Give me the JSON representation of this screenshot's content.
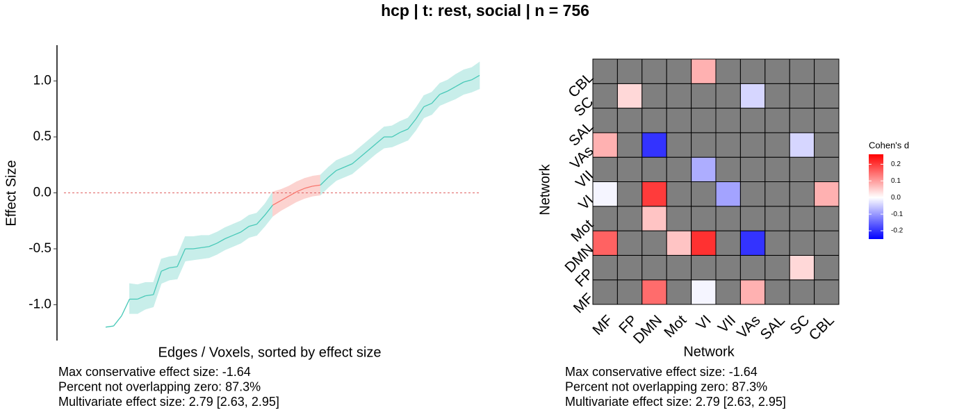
{
  "title": "hcp | t: rest, social | n = 756",
  "chart_data": [
    {
      "type": "line",
      "xlabel": "Edges / Voxels, sorted by effect size",
      "ylabel": "Effect Size",
      "values": [
        -1.2,
        -1.19,
        -1.1,
        -0.95,
        -0.95,
        -0.92,
        -0.91,
        -0.7,
        -0.67,
        -0.66,
        -0.5,
        -0.5,
        -0.49,
        -0.48,
        -0.45,
        -0.41,
        -0.38,
        -0.35,
        -0.3,
        -0.28,
        -0.2,
        -0.11,
        -0.07,
        -0.03,
        0.01,
        0.04,
        0.06,
        0.07,
        0.14,
        0.2,
        0.23,
        0.26,
        0.32,
        0.38,
        0.44,
        0.5,
        0.5,
        0.54,
        0.57,
        0.66,
        0.77,
        0.8,
        0.88,
        0.91,
        0.95,
        0.99,
        1.01,
        1.05
      ],
      "lower": [
        null,
        null,
        null,
        -1.08,
        -1.08,
        -1.04,
        -1.02,
        -0.81,
        -0.78,
        -0.77,
        -0.61,
        -0.6,
        -0.59,
        -0.58,
        -0.55,
        -0.51,
        -0.48,
        -0.45,
        -0.4,
        -0.38,
        -0.3,
        -0.21,
        -0.16,
        -0.12,
        -0.08,
        -0.05,
        -0.03,
        -0.02,
        0.05,
        0.11,
        0.14,
        0.17,
        0.23,
        0.29,
        0.35,
        0.4,
        0.41,
        0.44,
        0.47,
        0.56,
        0.67,
        0.7,
        0.78,
        0.81,
        0.84,
        0.88,
        0.9,
        0.93
      ],
      "upper": [
        null,
        null,
        null,
        -0.81,
        -0.82,
        -0.8,
        -0.8,
        -0.59,
        -0.57,
        -0.56,
        -0.39,
        -0.39,
        -0.38,
        -0.38,
        -0.35,
        -0.31,
        -0.28,
        -0.25,
        -0.2,
        -0.18,
        -0.1,
        0.01,
        0.03,
        0.06,
        0.1,
        0.13,
        0.15,
        0.16,
        0.23,
        0.29,
        0.32,
        0.35,
        0.41,
        0.47,
        0.53,
        0.59,
        0.6,
        0.64,
        0.67,
        0.76,
        0.87,
        0.9,
        0.98,
        1.01,
        1.06,
        1.1,
        1.12,
        1.17
      ],
      "color": "#48c9b8",
      "ribbon_color": "#c8eeea",
      "overlap_color": "#f8766d",
      "overlap_ribbon_color": "#fcd3d0",
      "hline": 0,
      "hline_color": "#e06060",
      "ylim": [
        -1.32,
        1.32
      ],
      "yticks": [
        {
          "value": -1,
          "label": "-1.0"
        },
        {
          "value": -0.5,
          "label": "-0.5"
        },
        {
          "value": 0,
          "label": "0.0"
        },
        {
          "value": 0.5,
          "label": "0.5"
        },
        {
          "value": 1,
          "label": "1.0"
        }
      ],
      "notes": [
        "Max conservative effect size: -1.64",
        "Percent not overlapping zero: 87.3%",
        "Multivariate effect size: 2.79 [2.63, 2.95]"
      ]
    },
    {
      "type": "heatmap",
      "xlabel": "Network",
      "ylabel": "Network",
      "x": [
        "MF",
        "FP",
        "DMN",
        "Mot",
        "VI",
        "VII",
        "VAs",
        "SAL",
        "SC",
        "CBL"
      ],
      "y": [
        "MF",
        "FP",
        "DMN",
        "Mot",
        "VI",
        "VII",
        "VAs",
        "SAL",
        "SC",
        "CBL"
      ],
      "values": [
        [
          null,
          null,
          0.15,
          null,
          -0.01,
          null,
          0.08,
          null,
          null,
          null
        ],
        [
          null,
          null,
          null,
          null,
          null,
          null,
          null,
          null,
          0.04,
          null
        ],
        [
          0.16,
          null,
          null,
          0.06,
          0.21,
          null,
          -0.2,
          null,
          null,
          null
        ],
        [
          null,
          null,
          0.06,
          null,
          null,
          null,
          null,
          null,
          null,
          null
        ],
        [
          -0.01,
          null,
          0.2,
          null,
          null,
          -0.09,
          null,
          null,
          null,
          0.08
        ],
        [
          null,
          null,
          null,
          null,
          -0.08,
          null,
          null,
          null,
          null,
          null
        ],
        [
          0.08,
          null,
          -0.2,
          null,
          null,
          null,
          null,
          null,
          -0.04,
          null
        ],
        [
          null,
          null,
          null,
          null,
          null,
          null,
          null,
          null,
          null,
          null
        ],
        [
          null,
          0.04,
          null,
          null,
          null,
          null,
          -0.04,
          null,
          null,
          null
        ],
        [
          null,
          null,
          null,
          null,
          0.08,
          null,
          null,
          null,
          null,
          null
        ]
      ],
      "legend_title": "Cohen's d",
      "low_color": "#0000ff",
      "mid_color": "#ffffff",
      "high_color": "#ff0000",
      "na_color": "#7f7f7f",
      "zlim": [
        -0.25,
        0.26
      ],
      "zticks": [
        {
          "value": 0.2,
          "label": "0.2"
        },
        {
          "value": 0.1,
          "label": "0.1"
        },
        {
          "value": 0,
          "label": "0.0"
        },
        {
          "value": -0.1,
          "label": "-0.1"
        },
        {
          "value": -0.2,
          "label": "-0.2"
        }
      ],
      "notes": [
        "Max conservative effect size: -1.64",
        "Percent not overlapping zero: 87.3%",
        "Multivariate effect size: 2.79 [2.63, 2.95]"
      ]
    }
  ]
}
